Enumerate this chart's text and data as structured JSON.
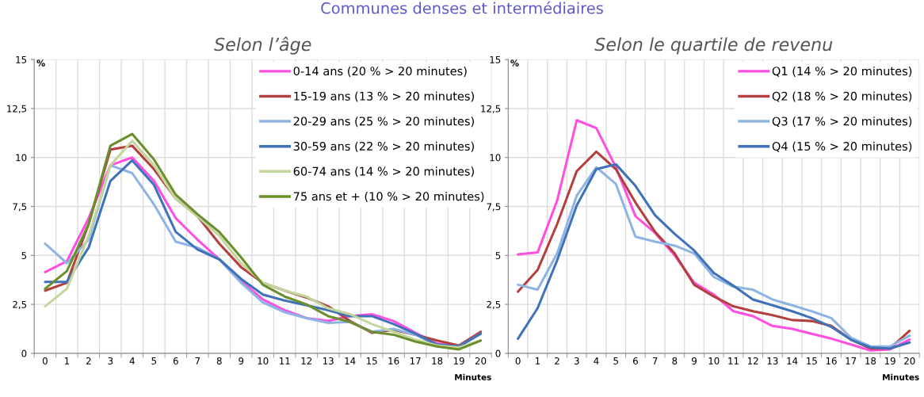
{
  "chart_data": [
    {
      "type": "line",
      "title": "Selon l’âge",
      "ylabel": "%",
      "xlabel": "Minutes",
      "annotations": [
        "Communes denses et intermédiaires"
      ],
      "categories": [
        "0",
        "1",
        "2",
        "3",
        "4",
        "5",
        "6",
        "7",
        "8",
        "9",
        "10",
        "11",
        "12",
        "13",
        "14",
        "15",
        "16",
        "17",
        "18",
        "19",
        "20"
      ],
      "ylim": [
        0,
        15
      ],
      "yticks": [
        0,
        {
          "value": 2.5,
          "label": "2,5"
        },
        5,
        {
          "value": 7.5,
          "label": "7,5"
        },
        10,
        {
          "value": 12.5,
          "label": "12,5"
        },
        15
      ],
      "grid": true,
      "legend": "top right",
      "marker": "none",
      "line_style": "solid",
      "series": [
        {
          "name": "0-14 ans (20 % > 20 minutes)",
          "color": "#ff4fe0",
          "values": [
            4.15,
            4.7,
            6.9,
            9.6,
            10.0,
            8.8,
            6.9,
            5.8,
            4.8,
            3.7,
            2.75,
            2.2,
            1.8,
            1.65,
            1.9,
            2.0,
            1.65,
            1.05,
            0.5,
            0.35,
            1.05
          ]
        },
        {
          "name": "15-19 ans (13 % > 20 minutes)",
          "color": "#b3403e",
          "values": [
            3.2,
            3.6,
            6.6,
            10.4,
            10.6,
            9.4,
            7.9,
            7.0,
            5.6,
            4.4,
            3.6,
            3.2,
            2.85,
            2.4,
            1.65,
            1.05,
            1.2,
            0.95,
            0.65,
            0.4,
            1.1
          ]
        },
        {
          "name": "20-29 ans (25 % > 20 minutes)",
          "color": "#8db4e2",
          "values": [
            5.6,
            4.6,
            5.8,
            9.6,
            9.2,
            7.6,
            5.7,
            5.4,
            4.8,
            3.6,
            2.6,
            2.1,
            1.8,
            1.55,
            1.6,
            1.1,
            1.25,
            0.95,
            0.4,
            0.35,
            1.0
          ]
        },
        {
          "name": "30-59 ans (22 % > 20 minutes)",
          "color": "#3f72b8",
          "values": [
            3.65,
            3.65,
            5.4,
            8.8,
            9.85,
            8.6,
            6.2,
            5.3,
            4.8,
            3.8,
            3.0,
            2.7,
            2.45,
            2.2,
            1.9,
            1.9,
            1.5,
            1.0,
            0.45,
            0.35,
            1.0
          ]
        },
        {
          "name": "60-74 ans (14 % > 20 minutes)",
          "color": "#c3d69b",
          "values": [
            2.4,
            3.3,
            6.0,
            9.6,
            10.85,
            9.6,
            7.9,
            7.0,
            6.0,
            4.6,
            3.6,
            3.2,
            2.9,
            2.3,
            2.0,
            1.5,
            1.1,
            0.7,
            0.4,
            0.3,
            0.65
          ]
        },
        {
          "name": "75 ans et + (10 % > 20 minutes)",
          "color": "#6b8e2e",
          "values": [
            3.3,
            4.2,
            6.6,
            10.6,
            11.2,
            9.9,
            8.1,
            7.1,
            6.2,
            4.9,
            3.5,
            2.9,
            2.5,
            1.9,
            1.6,
            1.1,
            0.95,
            0.6,
            0.35,
            0.2,
            0.65
          ]
        }
      ]
    },
    {
      "type": "line",
      "title": "Selon le quartile de revenu",
      "ylabel": "%",
      "xlabel": "Minutes",
      "categories": [
        "0",
        "1",
        "2",
        "3",
        "4",
        "5",
        "6",
        "7",
        "8",
        "9",
        "10",
        "11",
        "12",
        "13",
        "14",
        "15",
        "16",
        "17",
        "18",
        "19",
        "20"
      ],
      "ylim": [
        0,
        15
      ],
      "yticks": [
        0,
        {
          "value": 2.5,
          "label": "2,5"
        },
        5,
        {
          "value": 7.5,
          "label": "7,5"
        },
        10,
        {
          "value": 12.5,
          "label": "12,5"
        },
        15
      ],
      "grid": true,
      "legend": "top right",
      "marker": "none",
      "line_style": "solid",
      "series": [
        {
          "name": "Q1 (14 % > 20 minutes)",
          "color": "#ff4fe0",
          "values": [
            5.05,
            5.15,
            7.8,
            11.9,
            11.5,
            9.5,
            7.0,
            6.15,
            5.0,
            3.6,
            3.0,
            2.15,
            1.9,
            1.4,
            1.25,
            1.0,
            0.75,
            0.45,
            0.15,
            0.2,
            0.7
          ]
        },
        {
          "name": "Q2 (18 % > 20 minutes)",
          "color": "#b3403e",
          "values": [
            3.15,
            4.25,
            6.6,
            9.3,
            10.3,
            9.4,
            7.7,
            6.2,
            5.1,
            3.5,
            2.9,
            2.4,
            2.15,
            1.95,
            1.7,
            1.65,
            1.4,
            0.7,
            0.25,
            0.25,
            1.15
          ]
        },
        {
          "name": "Q3 (17 % > 20 minutes)",
          "color": "#8db4e2",
          "values": [
            3.5,
            3.25,
            5.1,
            8.05,
            9.5,
            8.65,
            5.95,
            5.7,
            5.5,
            5.1,
            3.9,
            3.4,
            3.25,
            2.75,
            2.45,
            2.15,
            1.8,
            0.8,
            0.35,
            0.35,
            0.9
          ]
        },
        {
          "name": "Q4 (15 % > 20 minutes)",
          "color": "#3f72b8",
          "values": [
            0.75,
            2.3,
            4.75,
            7.55,
            9.4,
            9.65,
            8.55,
            7.05,
            6.1,
            5.25,
            4.1,
            3.45,
            2.75,
            2.45,
            2.15,
            1.8,
            1.35,
            0.7,
            0.3,
            0.25,
            0.55
          ]
        }
      ]
    }
  ]
}
